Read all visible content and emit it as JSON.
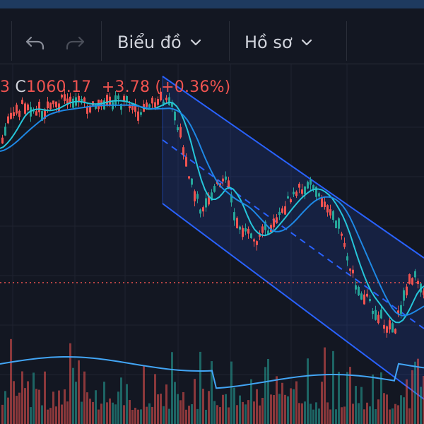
{
  "toolbar": {
    "undo_icon": "undo-icon",
    "redo_icon": "redo-icon",
    "chart_menu_label": "Biểu đồ",
    "profile_menu_label": "Hồ sơ"
  },
  "legend": {
    "open_fragment": "3",
    "close_label": "C",
    "close_value": "1060.17",
    "change": "+3.78",
    "change_pct": "(+0.36%)"
  },
  "colors": {
    "background": "#131722",
    "up": "#26a69a",
    "down": "#ef5350",
    "channel": "#2962ff",
    "ma_fast": "#26c6da",
    "ma_slow": "#1e88e5",
    "volume_ma": "#42a5f5"
  },
  "chart": {
    "close_price_line": "dotted",
    "channel": "falling parallel channel",
    "indicators": [
      "moving average fast",
      "moving average slow",
      "volume",
      "volume moving average"
    ]
  }
}
